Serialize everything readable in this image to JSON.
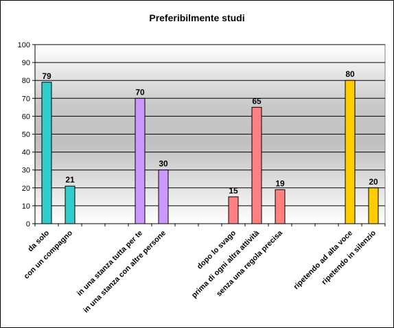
{
  "chart_data": {
    "type": "bar",
    "title": "Preferibilmente studi",
    "xlabel": "",
    "ylabel": "",
    "ylim": [
      0,
      100
    ],
    "yticks": [
      0,
      10,
      20,
      30,
      40,
      50,
      60,
      70,
      80,
      90,
      100
    ],
    "grid": true,
    "bars": [
      {
        "label": "da solo",
        "value": 79,
        "slot": 0,
        "color": "#33CCCC"
      },
      {
        "label": "con un compagno",
        "value": 21,
        "slot": 1,
        "color": "#33CCCC"
      },
      {
        "label": "in una stanza tutta per te",
        "value": 70,
        "slot": 4,
        "color": "#CC99FF"
      },
      {
        "label": "in una stanza con altre persone",
        "value": 30,
        "slot": 5,
        "color": "#CC99FF"
      },
      {
        "label": "dopo lo svago",
        "value": 15,
        "slot": 8,
        "color": "#FF8080"
      },
      {
        "label": "prima di ogni altra attività",
        "value": 65,
        "slot": 9,
        "color": "#FF8080"
      },
      {
        "label": "senza una regola precisa",
        "value": 19,
        "slot": 10,
        "color": "#FF8080"
      },
      {
        "label": "ripetendo ad alta voce",
        "value": 80,
        "slot": 13,
        "color": "#FFCC00"
      },
      {
        "label": "ripetendo in silenzio",
        "value": 20,
        "slot": 14,
        "color": "#FFCC00"
      }
    ]
  }
}
